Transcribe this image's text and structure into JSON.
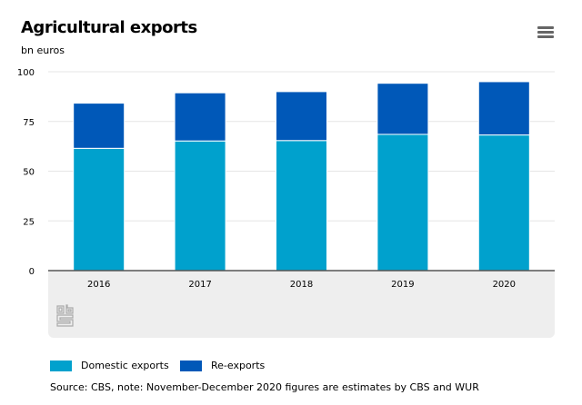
{
  "chart_data": {
    "type": "bar",
    "stacked": true,
    "title": "Agricultural exports",
    "ylabel": "bn euros",
    "categories": [
      "2016",
      "2017",
      "2018",
      "2019",
      "2020"
    ],
    "series": [
      {
        "name": "Domestic exports",
        "color": "#00a1cd",
        "values": [
          61.5,
          65.2,
          65.4,
          68.5,
          68.2
        ]
      },
      {
        "name": "Re-exports",
        "color": "#0058b8",
        "values": [
          22.7,
          24.2,
          24.6,
          25.7,
          26.8
        ]
      }
    ],
    "ylim": [
      0,
      100
    ],
    "yticks": [
      "0",
      "25",
      "50",
      "75",
      "100"
    ],
    "grid": true,
    "legend": "bottom-left",
    "source": "Source: CBS, note: November-December 2020 figures are estimates by CBS and WUR"
  },
  "logo": "cbs",
  "menu_icon": "hamburger-icon"
}
